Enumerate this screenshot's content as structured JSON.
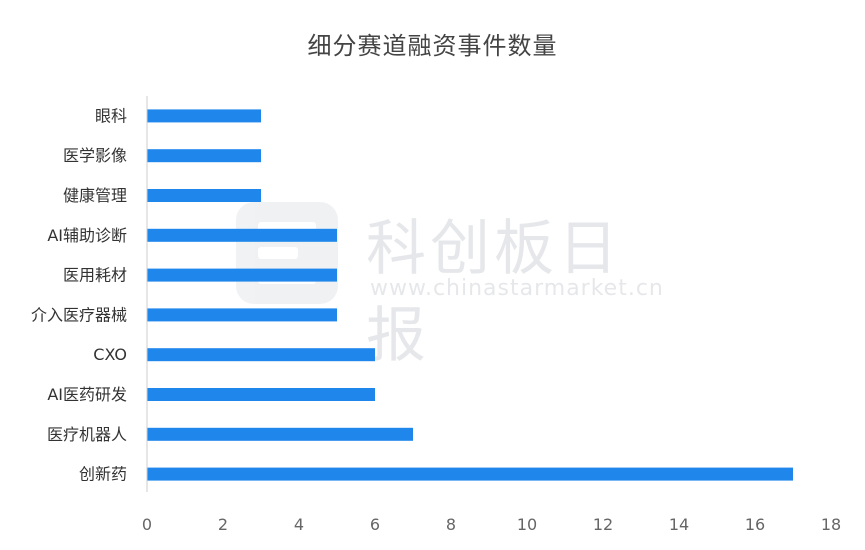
{
  "watermark": {
    "name": "科创板日报",
    "url": "www.chinastarmarket.cn"
  },
  "chart_data": {
    "type": "bar",
    "orientation": "horizontal",
    "title": "细分赛道融资事件数量",
    "xlabel": "",
    "ylabel": "",
    "xlim": [
      0,
      18
    ],
    "xticks": [
      0,
      2,
      4,
      6,
      8,
      10,
      12,
      14,
      16,
      18
    ],
    "categories": [
      "眼科",
      "医学影像",
      "健康管理",
      "AI辅助诊断",
      "医用耗材",
      "介入医疗器械",
      "CXO",
      "AI医药研发",
      "医疗机器人",
      "创新药"
    ],
    "values": [
      3,
      3,
      3,
      5,
      5,
      5,
      6,
      6,
      7,
      17
    ],
    "bar_color": "#1f87eb",
    "grid": false,
    "legend": "none"
  }
}
